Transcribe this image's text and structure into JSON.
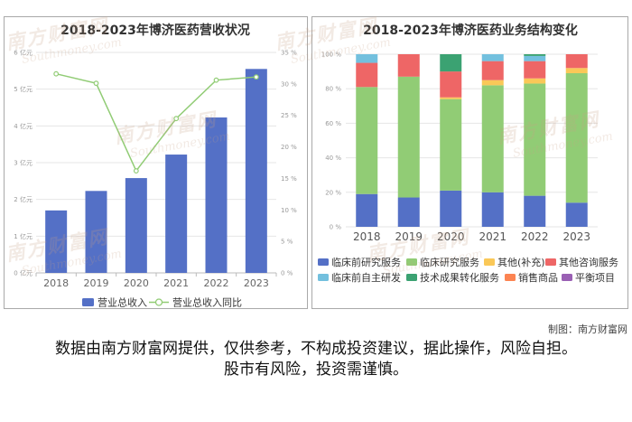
{
  "chart_data": [
    {
      "type": "bar",
      "title": "2018-2023年博济医药营收状况",
      "categories": [
        "2018",
        "2019",
        "2020",
        "2021",
        "2022",
        "2023"
      ],
      "series": [
        {
          "name": "营业总收入",
          "type": "bar",
          "y_axis": "left",
          "color": "#5470c6",
          "values": [
            1.7,
            2.23,
            2.58,
            3.22,
            4.23,
            5.55
          ]
        },
        {
          "name": "营业总收入同比",
          "type": "line",
          "y_axis": "right",
          "color": "#91cc75",
          "values": [
            31.6,
            30.1,
            16.2,
            24.5,
            30.6,
            31.1
          ]
        }
      ],
      "y_left": {
        "min": 0,
        "max": 6,
        "ticks": [
          0,
          1,
          2,
          3,
          4,
          5,
          6
        ],
        "unit": "亿元"
      },
      "y_right": {
        "min": 0,
        "max": 35,
        "ticks": [
          0,
          5,
          10,
          15,
          20,
          25,
          30,
          35
        ],
        "unit": "%"
      },
      "grid": true,
      "legend_position": "bottom"
    },
    {
      "type": "bar",
      "stacked": true,
      "title": "2018-2023年博济医药业务结构变化",
      "categories": [
        "2018",
        "2019",
        "2020",
        "2021",
        "2022",
        "2023"
      ],
      "series": [
        {
          "name": "临床前研究服务",
          "color": "#5470c6",
          "values": [
            19,
            17,
            21,
            20,
            18,
            14
          ]
        },
        {
          "name": "临床研究服务",
          "color": "#91cc75",
          "values": [
            62,
            70,
            53,
            62,
            65,
            75
          ]
        },
        {
          "name": "其他(补充)",
          "color": "#fac858",
          "values": [
            0,
            0,
            1,
            3,
            3,
            3
          ]
        },
        {
          "name": "其他咨询服务",
          "color": "#ee6666",
          "values": [
            14,
            13,
            15,
            11,
            10,
            8
          ]
        },
        {
          "name": "临床前自主研发",
          "color": "#73c0de",
          "values": [
            5,
            0,
            0,
            4,
            3,
            0
          ]
        },
        {
          "name": "技术成果转化服务",
          "color": "#3ba272",
          "values": [
            0,
            0,
            10,
            0,
            1,
            0
          ]
        },
        {
          "name": "销售商品",
          "color": "#fc8452",
          "values": [
            0,
            0,
            0,
            0,
            0,
            0
          ]
        },
        {
          "name": "平衡项目",
          "color": "#9a60b4",
          "values": [
            0,
            0,
            0,
            0,
            0,
            0
          ]
        }
      ],
      "y": {
        "min": 0,
        "max": 100,
        "ticks": [
          0,
          20,
          40,
          60,
          80,
          100
        ],
        "unit": "%"
      },
      "grid": true,
      "legend_position": "bottom"
    }
  ],
  "footer": {
    "credit": "制图：南方财富网",
    "disclaimer_line1": "数据由南方财富网提供，仅供参考，不构成投资建议，据此操作，风险自担。",
    "disclaimer_line2": "股市有风险，投资需谨慎。"
  },
  "watermark": {
    "cn": "南方财富网",
    "en": "Southmoney.com"
  }
}
